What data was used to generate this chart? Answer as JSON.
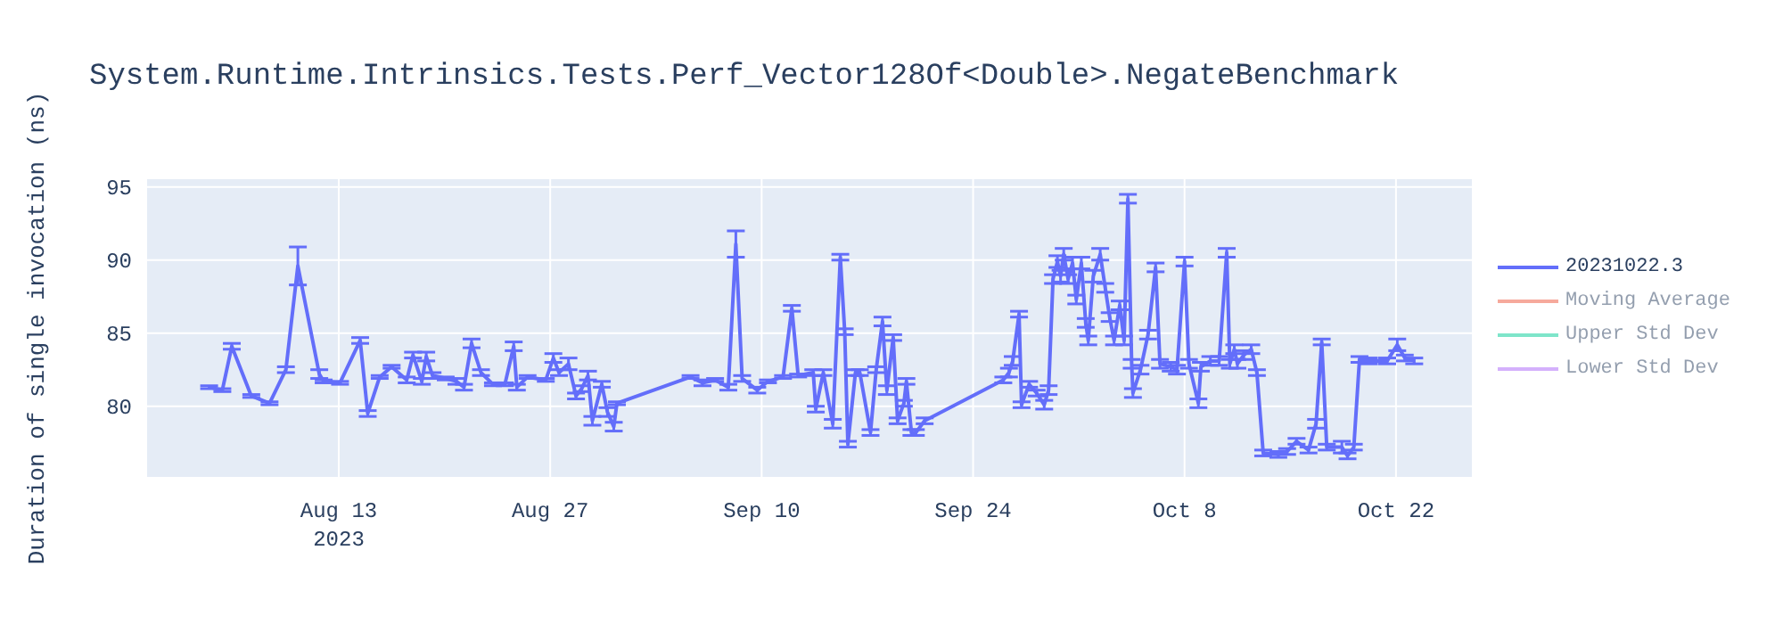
{
  "chart_data": {
    "type": "line",
    "title": "System.Runtime.Intrinsics.Tests.Perf_Vector128Of<Double>.NegateBenchmark",
    "ylabel": "Duration of single invocation (ns)",
    "x": [
      "2023-08-04T10:00",
      "2023-08-05T07:00",
      "2023-08-05T22:00",
      "2023-08-07T05:00",
      "2023-08-08T10:00",
      "2023-08-09T12:00",
      "2023-08-10T07:00",
      "2023-08-11T17:00",
      "2023-08-12T00:00",
      "2023-08-13T02:00",
      "2023-08-14T10:00",
      "2023-08-14T22:00",
      "2023-08-15T17:00",
      "2023-08-16T12:00",
      "2023-08-17T12:00",
      "2023-08-17T22:00",
      "2023-08-18T12:00",
      "2023-08-18T19:00",
      "2023-08-19T05:00",
      "2023-08-20T02:00",
      "2023-08-20T19:00",
      "2023-08-21T07:00",
      "2023-08-21T19:00",
      "2023-08-22T10:00",
      "2023-08-23T05:00",
      "2023-08-24T00:00",
      "2023-08-24T14:00",
      "2023-08-24T19:00",
      "2023-08-25T12:00",
      "2023-08-26T17:00",
      "2023-08-27T05:00",
      "2023-08-27T14:00",
      "2023-08-28T05:00",
      "2023-08-28T17:00",
      "2023-08-29T02:00",
      "2023-08-29T12:00",
      "2023-08-29T19:00",
      "2023-08-30T10:00",
      "2023-08-30T19:00",
      "2023-08-31T05:00",
      "2023-08-31T10:00",
      "2023-09-05T07:00",
      "2023-09-06T02:00",
      "2023-09-06T22:00",
      "2023-09-07T19:00",
      "2023-09-08T07:00",
      "2023-09-08T17:00",
      "2023-09-09T17:00",
      "2023-09-10T10:00",
      "2023-09-11T10:00",
      "2023-09-12T00:00",
      "2023-09-12T10:00",
      "2023-09-13T10:00",
      "2023-09-13T14:00",
      "2023-09-14T02:00",
      "2023-09-14T17:00",
      "2023-09-15T05:00",
      "2023-09-15T12:00",
      "2023-09-15T17:00",
      "2023-09-16T05:00",
      "2023-09-16T12:00",
      "2023-09-17T05:00",
      "2023-09-17T14:00",
      "2023-09-18T00:00",
      "2023-09-18T07:00",
      "2023-09-18T17:00",
      "2023-09-19T00:00",
      "2023-09-19T10:00",
      "2023-09-19T14:00",
      "2023-09-19T22:00",
      "2023-09-20T05:00",
      "2023-09-20T19:00",
      "2023-09-26T00:00",
      "2023-09-26T09:00",
      "2023-09-26T15:00",
      "2023-09-27T01:00",
      "2023-09-27T05:00",
      "2023-09-27T17:00",
      "2023-09-28T05:00",
      "2023-09-28T17:00",
      "2023-09-29T00:00",
      "2023-09-29T07:00",
      "2023-09-29T14:00",
      "2023-09-29T19:00",
      "2023-09-30T00:00",
      "2023-09-30T07:00",
      "2023-09-30T14:00",
      "2023-09-30T20:00",
      "2023-10-01T04:00",
      "2023-10-01T11:00",
      "2023-10-01T15:00",
      "2023-10-01T23:00",
      "2023-10-02T10:00",
      "2023-10-02T18:00",
      "2023-10-03T01:00",
      "2023-10-03T08:00",
      "2023-10-03T17:00",
      "2023-10-04T00:00",
      "2023-10-04T06:00",
      "2023-10-04T12:00",
      "2023-10-04T14:00",
      "2023-10-05T02:00",
      "2023-10-05T14:00",
      "2023-10-06T02:00",
      "2023-10-06T09:00",
      "2023-10-07T02:00",
      "2023-10-07T12:00",
      "2023-10-08T00:00",
      "2023-10-08T07:00",
      "2023-10-08T22:00",
      "2023-10-09T02:00",
      "2023-10-09T17:00",
      "2023-10-10T07:00",
      "2023-10-10T19:00",
      "2023-10-11T00:00",
      "2023-10-11T07:00",
      "2023-10-11T12:00",
      "2023-10-11T22:00",
      "2023-10-12T10:00",
      "2023-10-12T19:00",
      "2023-10-13T05:00",
      "2023-10-14T05:00",
      "2023-10-14T19:00",
      "2023-10-15T10:00",
      "2023-10-16T05:00",
      "2023-10-16T17:00",
      "2023-10-17T02:00",
      "2023-10-17T10:00",
      "2023-10-18T10:00",
      "2023-10-18T19:00",
      "2023-10-19T05:00",
      "2023-10-19T14:00",
      "2023-10-20T05:00",
      "2023-10-21T10:00",
      "2023-10-22T02:00",
      "2023-10-22T14:00",
      "2023-10-23T05:00"
    ],
    "series": [
      {
        "name": "20231022.3",
        "color": "#636efa",
        "values": [
          81.3,
          81.1,
          84.1,
          80.7,
          80.2,
          82.5,
          89.6,
          82.2,
          81.7,
          81.6,
          84.5,
          79.5,
          82.0,
          82.7,
          81.8,
          83.5,
          81.7,
          83.4,
          82.1,
          81.9,
          81.7,
          81.3,
          84.3,
          82.3,
          81.5,
          81.5,
          84.1,
          81.3,
          82.0,
          81.8,
          83.3,
          82.3,
          82.9,
          80.7,
          81.2,
          82.1,
          79.0,
          81.5,
          79.6,
          78.6,
          80.2,
          82.0,
          81.6,
          81.8,
          81.3,
          91.1,
          81.9,
          81.1,
          81.7,
          82.0,
          86.7,
          82.1,
          82.3,
          79.8,
          82.3,
          78.8,
          90.2,
          85.1,
          77.4,
          82.3,
          82.3,
          78.2,
          82.5,
          85.8,
          81.1,
          84.7,
          79.0,
          80.2,
          81.7,
          78.2,
          78.2,
          79.0,
          81.8,
          82.3,
          83.1,
          86.3,
          80.1,
          81.5,
          80.9,
          80.1,
          81.1,
          88.7,
          89.9,
          88.9,
          90.4,
          88.7,
          89.8,
          87.3,
          89.8,
          85.7,
          84.5,
          88.9,
          90.4,
          88.1,
          86.1,
          84.5,
          86.9,
          84.5,
          94.2,
          82.9,
          80.9,
          82.5,
          84.9,
          89.5,
          82.9,
          82.7,
          82.5,
          89.9,
          82.9,
          80.2,
          82.7,
          83.1,
          83.1,
          90.5,
          82.9,
          83.9,
          82.9,
          83.5,
          83.9,
          82.3,
          76.8,
          76.7,
          76.9,
          77.6,
          77.0,
          78.8,
          84.4,
          77.2,
          77.2,
          76.6,
          77.2,
          83.2,
          83.1,
          83.1,
          84.2,
          83.3,
          83.1
        ],
        "errors": [
          0.1,
          0.1,
          0.2,
          0.1,
          0.1,
          0.2,
          1.3,
          0.3,
          0.1,
          0.1,
          0.2,
          0.2,
          0.1,
          0.1,
          0.2,
          0.2,
          0.2,
          0.3,
          0.2,
          0.1,
          0.2,
          0.2,
          0.3,
          0.2,
          0.1,
          0.1,
          0.3,
          0.2,
          0.1,
          0.1,
          0.3,
          0.2,
          0.4,
          0.2,
          0.2,
          0.3,
          0.3,
          0.2,
          0.3,
          0.3,
          0.1,
          0.1,
          0.2,
          0.1,
          0.2,
          0.9,
          0.2,
          0.2,
          0.1,
          0.1,
          0.2,
          0.1,
          0.2,
          0.2,
          0.2,
          0.3,
          0.2,
          0.2,
          0.2,
          0.2,
          0.2,
          0.2,
          0.2,
          0.3,
          0.3,
          0.2,
          0.2,
          0.2,
          0.2,
          0.2,
          0.2,
          0.2,
          0.2,
          0.3,
          0.3,
          0.2,
          0.2,
          0.2,
          0.2,
          0.3,
          0.3,
          0.3,
          0.4,
          0.4,
          0.4,
          0.3,
          0.4,
          0.3,
          0.4,
          0.3,
          0.3,
          0.4,
          0.4,
          0.3,
          0.3,
          0.3,
          0.3,
          0.3,
          0.3,
          0.3,
          0.3,
          0.3,
          0.3,
          0.3,
          0.3,
          0.3,
          0.3,
          0.3,
          0.3,
          0.3,
          0.3,
          0.3,
          0.3,
          0.3,
          0.3,
          0.3,
          0.3,
          0.3,
          0.3,
          0.2,
          0.2,
          0.2,
          0.2,
          0.2,
          0.2,
          0.3,
          0.2,
          0.2,
          0.4,
          0.2,
          0.2,
          0.2,
          0.2,
          0.2,
          0.4,
          0.2,
          0.2
        ]
      },
      {
        "name": "Moving Average",
        "color": "#ef553b",
        "values": [
          null,
          null,
          null,
          null,
          null,
          null,
          null,
          null,
          null,
          null,
          null,
          null,
          null,
          null,
          null,
          null,
          null,
          null,
          null,
          null,
          null,
          null,
          null,
          null,
          null,
          null,
          null,
          null,
          null,
          null,
          null,
          null,
          null,
          null,
          null,
          null,
          null,
          null,
          null,
          null,
          null,
          null,
          null,
          null,
          null,
          null,
          null,
          null,
          null,
          null,
          null,
          null,
          null,
          null,
          null,
          null,
          null,
          null,
          null,
          null,
          null,
          null,
          null,
          null,
          null,
          null,
          null,
          null,
          null,
          null,
          null,
          null,
          null,
          null,
          null,
          null,
          null,
          null,
          null,
          null,
          null,
          null,
          null,
          null,
          null,
          null,
          null,
          null,
          null,
          null,
          null,
          null,
          null,
          null,
          null,
          null,
          null,
          null,
          null,
          null,
          null,
          null,
          null,
          null,
          null,
          null,
          null,
          null,
          null,
          null,
          null,
          null,
          null,
          null,
          null,
          null,
          null,
          null,
          null,
          null,
          null,
          null,
          null,
          null,
          null,
          null,
          null,
          null,
          null,
          null,
          null,
          null,
          null,
          null,
          null,
          null,
          null
        ]
      },
      {
        "name": "Upper Std Dev",
        "color": "#00cc96",
        "values": [
          null,
          null,
          null,
          null,
          null,
          null,
          null,
          null,
          null,
          null,
          null,
          null,
          null,
          null,
          null,
          null,
          null,
          null,
          null,
          null,
          null,
          null,
          null,
          null,
          null,
          null,
          null,
          null,
          null,
          null,
          null,
          null,
          null,
          null,
          null,
          null,
          null,
          null,
          null,
          null,
          null,
          null,
          null,
          null,
          null,
          null,
          null,
          null,
          null,
          null,
          null,
          null,
          null,
          null,
          null,
          null,
          null,
          null,
          null,
          null,
          null,
          null,
          null,
          null,
          null,
          null,
          null,
          null,
          null,
          null,
          null,
          null,
          null,
          null,
          null,
          null,
          null,
          null,
          null,
          null,
          null,
          null,
          null,
          null,
          null,
          null,
          null,
          null,
          null,
          null,
          null,
          null,
          null,
          null,
          null,
          null,
          null,
          null,
          null,
          null,
          null,
          null,
          null,
          null,
          null,
          null,
          null,
          null,
          null,
          null,
          null,
          null,
          null,
          null,
          null,
          null,
          null,
          null,
          null,
          null,
          null,
          null,
          null,
          null,
          null,
          null,
          null,
          null,
          null,
          null,
          null,
          null,
          null,
          null,
          null,
          null,
          null
        ]
      },
      {
        "name": "Lower Std Dev",
        "color": "#ab63fa",
        "values": [
          null,
          null,
          null,
          null,
          null,
          null,
          null,
          null,
          null,
          null,
          null,
          null,
          null,
          null,
          null,
          null,
          null,
          null,
          null,
          null,
          null,
          null,
          null,
          null,
          null,
          null,
          null,
          null,
          null,
          null,
          null,
          null,
          null,
          null,
          null,
          null,
          null,
          null,
          null,
          null,
          null,
          null,
          null,
          null,
          null,
          null,
          null,
          null,
          null,
          null,
          null,
          null,
          null,
          null,
          null,
          null,
          null,
          null,
          null,
          null,
          null,
          null,
          null,
          null,
          null,
          null,
          null,
          null,
          null,
          null,
          null,
          null,
          null,
          null,
          null,
          null,
          null,
          null,
          null,
          null,
          null,
          null,
          null,
          null,
          null,
          null,
          null,
          null,
          null,
          null,
          null,
          null,
          null,
          null,
          null,
          null,
          null,
          null,
          null,
          null,
          null,
          null,
          null,
          null,
          null,
          null,
          null,
          null,
          null,
          null,
          null,
          null,
          null,
          null,
          null,
          null,
          null,
          null,
          null,
          null,
          null,
          null,
          null,
          null,
          null,
          null,
          null,
          null,
          null,
          null,
          null,
          null,
          null,
          null,
          null,
          null,
          null
        ]
      }
    ],
    "xlim": [
      "2023-07-31T06:00",
      "2023-10-27T02:00"
    ],
    "xticks": [
      {
        "value": "2023-08-13",
        "label": "Aug 13\n2023"
      },
      {
        "value": "2023-08-27",
        "label": "Aug 27"
      },
      {
        "value": "2023-09-10",
        "label": "Sep 10"
      },
      {
        "value": "2023-09-24",
        "label": "Sep 24"
      },
      {
        "value": "2023-10-08",
        "label": "Oct 8"
      },
      {
        "value": "2023-10-22",
        "label": "Oct 22"
      }
    ],
    "ylim": [
      75.1,
      95.6
    ],
    "yticks": [
      80,
      85,
      90,
      95
    ],
    "grid": true,
    "legend": "right",
    "line_style": "solid"
  }
}
